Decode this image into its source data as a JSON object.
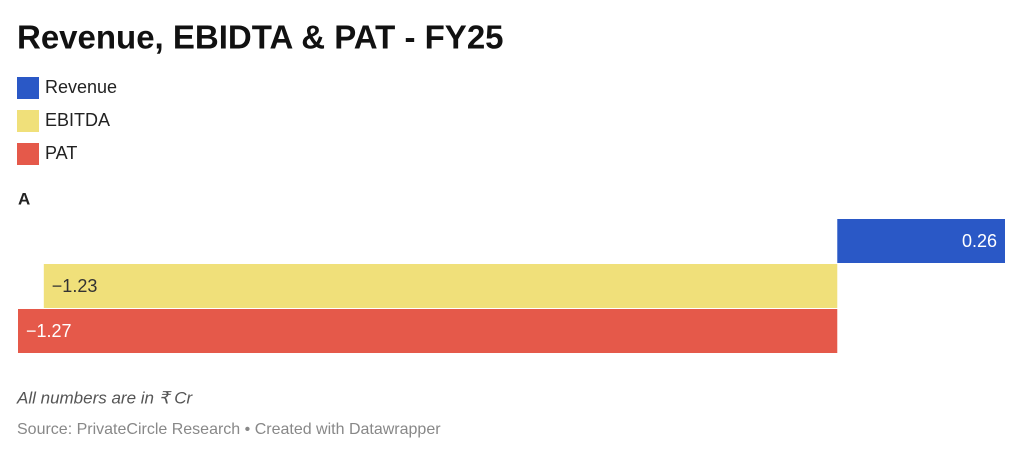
{
  "chart_data": {
    "type": "bar",
    "orientation": "horizontal",
    "title": "Revenue, EBIDTA & PAT - FY25",
    "categories": [
      "A"
    ],
    "series": [
      {
        "name": "Revenue",
        "color": "#2a58c6",
        "values": [
          0.26
        ],
        "value_labels": [
          "0.26"
        ]
      },
      {
        "name": "EBITDA",
        "color": "#f0e07a",
        "values": [
          -1.23
        ],
        "value_labels": [
          "−1.23"
        ]
      },
      {
        "name": "PAT",
        "color": "#e5594a",
        "values": [
          -1.27
        ],
        "value_labels": [
          "−1.27"
        ]
      }
    ],
    "xlim": [
      -1.27,
      0.26
    ],
    "note": "All numbers are in ₹ Cr",
    "source": "Source: PrivateCircle Research • Created with Datawrapper"
  }
}
